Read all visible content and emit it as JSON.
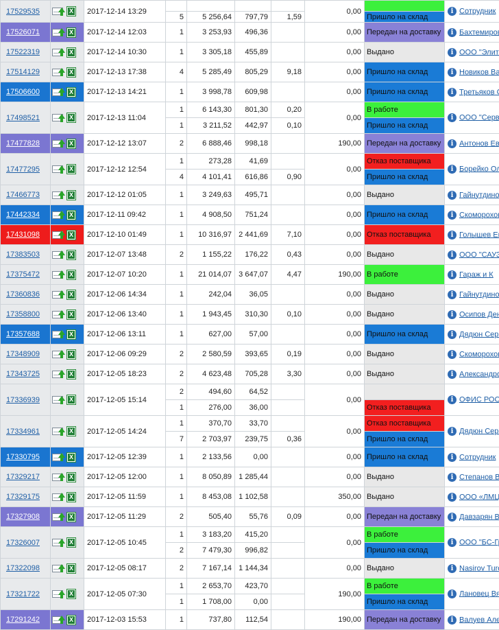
{
  "colors": {
    "link": "#1f5fa6",
    "purple": "#7b76d1",
    "blue": "#1a75d0",
    "red": "#ee1c1c",
    "green": "#3cf03c",
    "gray": "#e8e8e8"
  },
  "rows": [
    {
      "id": "17529535",
      "bg": "plain",
      "date": "2017-12-14 13:29",
      "sum": "0,00",
      "cust": "Сотрудник",
      "h": 32,
      "items": [
        {
          "q": "",
          "p": "",
          "c": "",
          "d": "",
          "st": "",
          "sc": "green"
        },
        {
          "q": "5",
          "p": "5 256,64",
          "c": "797,79",
          "d": "1,59",
          "st": "Пришло на склад",
          "sc": "blue"
        }
      ]
    },
    {
      "id": "17526071",
      "bg": "purple",
      "date": "2017-12-14 12:03",
      "sum": "0,00",
      "cust": "Бахтемиров",
      "h": 29,
      "items": [
        {
          "q": "1",
          "p": "3 253,93",
          "c": "496,36",
          "d": "",
          "st": "Передан на доставку",
          "sc": "purple"
        }
      ]
    },
    {
      "id": "17522319",
      "bg": "plain",
      "date": "2017-12-14 10:30",
      "sum": "0,00",
      "cust": "ООО \"Элит-",
      "h": 29,
      "items": [
        {
          "q": "1",
          "p": "3 305,18",
          "c": "455,89",
          "d": "",
          "st": "Выдано",
          "sc": "gray"
        }
      ]
    },
    {
      "id": "17514129",
      "bg": "plain",
      "date": "2017-12-13 17:38",
      "sum": "0,00",
      "cust": "Новиков Ва",
      "h": 29,
      "items": [
        {
          "q": "4",
          "p": "5 285,49",
          "c": "805,29",
          "d": "9,18",
          "st": "Пришло на склад",
          "sc": "blue"
        }
      ]
    },
    {
      "id": "17506600",
      "bg": "blue",
      "date": "2017-12-13 14:21",
      "sum": "0,00",
      "cust": "Третьяков С",
      "h": 29,
      "items": [
        {
          "q": "1",
          "p": "3 998,78",
          "c": "609,98",
          "d": "",
          "st": "Пришло на склад",
          "sc": "blue"
        }
      ]
    },
    {
      "id": "17498521",
      "bg": "plain",
      "date": "2017-12-13 11:04",
      "sum": "0,00",
      "cust": "ООО \"Серви",
      "h": 46,
      "items": [
        {
          "q": "1",
          "p": "6 143,30",
          "c": "801,30",
          "d": "0,20",
          "st": "В работе",
          "sc": "green"
        },
        {
          "q": "1",
          "p": "3 211,52",
          "c": "442,97",
          "d": "0,10",
          "st": "Пришло на склад",
          "sc": "blue"
        }
      ]
    },
    {
      "id": "17477828",
      "bg": "purple",
      "date": "2017-12-12 13:07",
      "sum": "190,00",
      "cust": "Антонов Ев",
      "h": 29,
      "items": [
        {
          "q": "2",
          "p": "6 888,46",
          "c": "998,18",
          "d": "",
          "st": "Передан на доставку",
          "sc": "purple"
        }
      ]
    },
    {
      "id": "17477295",
      "bg": "plain",
      "date": "2017-12-12 12:54",
      "sum": "0,00",
      "cust": "Борейко Ол",
      "h": 46,
      "items": [
        {
          "q": "1",
          "p": "273,28",
          "c": "41,69",
          "d": "",
          "st": "Отказ поставщика",
          "sc": "red"
        },
        {
          "q": "4",
          "p": "4 101,41",
          "c": "616,86",
          "d": "0,90",
          "st": "Пришло на склад",
          "sc": "blue"
        }
      ]
    },
    {
      "id": "17466773",
      "bg": "plain",
      "date": "2017-12-12 01:05",
      "sum": "0,00",
      "cust": "Гайнутдино",
      "h": 29,
      "items": [
        {
          "q": "1",
          "p": "3 249,63",
          "c": "495,71",
          "d": "",
          "st": "Выдано",
          "sc": "gray"
        }
      ]
    },
    {
      "id": "17442334",
      "bg": "blue",
      "date": "2017-12-11 09:42",
      "sum": "0,00",
      "cust": "Скоморохов",
      "h": 29,
      "items": [
        {
          "q": "1",
          "p": "4 908,50",
          "c": "751,24",
          "d": "",
          "st": "Пришло на склад",
          "sc": "blue"
        }
      ]
    },
    {
      "id": "17431098",
      "bg": "red",
      "date": "2017-12-10 01:49",
      "sum": "0,00",
      "cust": "Голышев Ев",
      "h": 29,
      "items": [
        {
          "q": "1",
          "p": "10 316,97",
          "c": "2 441,69",
          "d": "7,10",
          "st": "Отказ поставщика",
          "sc": "red"
        }
      ]
    },
    {
      "id": "17383503",
      "bg": "plain",
      "date": "2017-12-07 13:48",
      "sum": "0,00",
      "cust": "ООО \"САУЗ",
      "h": 29,
      "items": [
        {
          "q": "2",
          "p": "1 155,22",
          "c": "176,22",
          "d": "0,43",
          "st": "Выдано",
          "sc": "gray"
        }
      ]
    },
    {
      "id": "17375472",
      "bg": "plain",
      "date": "2017-12-07 10:20",
      "sum": "190,00",
      "cust": "Гараж и К",
      "h": 29,
      "items": [
        {
          "q": "1",
          "p": "21 014,07",
          "c": "3 647,07",
          "d": "4,47",
          "st": "В работе",
          "sc": "green"
        }
      ]
    },
    {
      "id": "17360836",
      "bg": "plain",
      "date": "2017-12-06 14:34",
      "sum": "0,00",
      "cust": "Гайнутдино",
      "h": 29,
      "items": [
        {
          "q": "1",
          "p": "242,04",
          "c": "36,05",
          "d": "",
          "st": "Выдано",
          "sc": "gray"
        }
      ]
    },
    {
      "id": "17358800",
      "bg": "plain",
      "date": "2017-12-06 13:40",
      "sum": "0,00",
      "cust": "Осипов Ден",
      "h": 29,
      "items": [
        {
          "q": "1",
          "p": "1 943,45",
          "c": "310,30",
          "d": "0,10",
          "st": "Выдано",
          "sc": "gray"
        }
      ]
    },
    {
      "id": "17357688",
      "bg": "blue",
      "date": "2017-12-06 13:11",
      "sum": "0,00",
      "cust": "Дядюн Серг",
      "h": 29,
      "items": [
        {
          "q": "1",
          "p": "627,00",
          "c": "57,00",
          "d": "",
          "st": "Пришло на склад",
          "sc": "blue"
        }
      ]
    },
    {
      "id": "17348909",
      "bg": "plain",
      "date": "2017-12-06 09:29",
      "sum": "0,00",
      "cust": "Скоморохов",
      "h": 29,
      "items": [
        {
          "q": "2",
          "p": "2 580,59",
          "c": "393,65",
          "d": "0,19",
          "st": "Выдано",
          "sc": "gray"
        }
      ]
    },
    {
      "id": "17343725",
      "bg": "plain",
      "date": "2017-12-05 18:23",
      "sum": "0,00",
      "cust": "Александро",
      "h": 29,
      "items": [
        {
          "q": "2",
          "p": "4 623,48",
          "c": "705,28",
          "d": "3,30",
          "st": "Выдано",
          "sc": "gray"
        }
      ]
    },
    {
      "id": "17336939",
      "bg": "plain",
      "date": "2017-12-05 15:14",
      "sum": "0,00",
      "cust": "ОФИС РОСТ",
      "h": 46,
      "items": [
        {
          "q": "2",
          "p": "494,60",
          "c": "64,52",
          "d": "",
          "st": "",
          "sc": "gray"
        },
        {
          "q": "1",
          "p": "276,00",
          "c": "36,00",
          "d": "",
          "st": "Отказ поставщика",
          "sc": "red"
        }
      ]
    },
    {
      "id": "17334961",
      "bg": "plain",
      "date": "2017-12-05 14:24",
      "sum": "0,00",
      "cust": "Дядюн Серг",
      "h": 46,
      "items": [
        {
          "q": "1",
          "p": "370,70",
          "c": "33,70",
          "d": "",
          "st": "Отказ поставщика",
          "sc": "red"
        },
        {
          "q": "7",
          "p": "2 703,97",
          "c": "239,75",
          "d": "0,36",
          "st": "Пришло на склад",
          "sc": "blue"
        }
      ]
    },
    {
      "id": "17330795",
      "bg": "blue",
      "date": "2017-12-05 12:39",
      "sum": "0,00",
      "cust": "Сотрудник",
      "h": 29,
      "items": [
        {
          "q": "1",
          "p": "2 133,56",
          "c": "0,00",
          "d": "",
          "st": "Пришло на склад",
          "sc": "blue"
        }
      ]
    },
    {
      "id": "17329217",
      "bg": "plain",
      "date": "2017-12-05 12:00",
      "sum": "0,00",
      "cust": "Степанов В",
      "h": 29,
      "items": [
        {
          "q": "1",
          "p": "8 050,89",
          "c": "1 285,44",
          "d": "",
          "st": "Выдано",
          "sc": "gray"
        }
      ]
    },
    {
      "id": "17329175",
      "bg": "plain",
      "date": "2017-12-05 11:59",
      "sum": "350,00",
      "cust": "ООО «ЛМЦ",
      "h": 29,
      "items": [
        {
          "q": "1",
          "p": "8 453,08",
          "c": "1 102,58",
          "d": "",
          "st": "Выдано",
          "sc": "gray"
        }
      ]
    },
    {
      "id": "17327908",
      "bg": "purple",
      "date": "2017-12-05 11:29",
      "sum": "0,00",
      "cust": "Давзарян В",
      "h": 29,
      "items": [
        {
          "q": "2",
          "p": "505,40",
          "c": "55,76",
          "d": "0,09",
          "st": "Передан на доставку",
          "sc": "purple"
        }
      ]
    },
    {
      "id": "17326007",
      "bg": "plain",
      "date": "2017-12-05 10:45",
      "sum": "0,00",
      "cust": "ООО \"БС-Гр",
      "h": 46,
      "items": [
        {
          "q": "1",
          "p": "3 183,20",
          "c": "415,20",
          "d": "",
          "st": "В работе",
          "sc": "green"
        },
        {
          "q": "2",
          "p": "7 479,30",
          "c": "996,82",
          "d": "",
          "st": "Пришло на склад",
          "sc": "blue"
        }
      ]
    },
    {
      "id": "17322098",
      "bg": "plain",
      "date": "2017-12-05 08:17",
      "sum": "0,00",
      "cust": "Nasirov Turo",
      "h": 29,
      "items": [
        {
          "q": "2",
          "p": "7 167,14",
          "c": "1 144,34",
          "d": "",
          "st": "Выдано",
          "sc": "gray"
        }
      ]
    },
    {
      "id": "17321722",
      "bg": "plain",
      "date": "2017-12-05 07:30",
      "sum": "190,00",
      "cust": "Лановец Вя",
      "h": 46,
      "items": [
        {
          "q": "1",
          "p": "2 653,70",
          "c": "423,70",
          "d": "",
          "st": "В работе",
          "sc": "green"
        },
        {
          "q": "1",
          "p": "1 708,00",
          "c": "0,00",
          "d": "",
          "st": "Пришло на склад",
          "sc": "blue"
        }
      ]
    },
    {
      "id": "17291242",
      "bg": "purple",
      "date": "2017-12-03 15:53",
      "sum": "190,00",
      "cust": "Валуев Але",
      "h": 29,
      "items": [
        {
          "q": "1",
          "p": "737,80",
          "c": "112,54",
          "d": "",
          "st": "Передан на доставку",
          "sc": "purple"
        }
      ]
    }
  ]
}
